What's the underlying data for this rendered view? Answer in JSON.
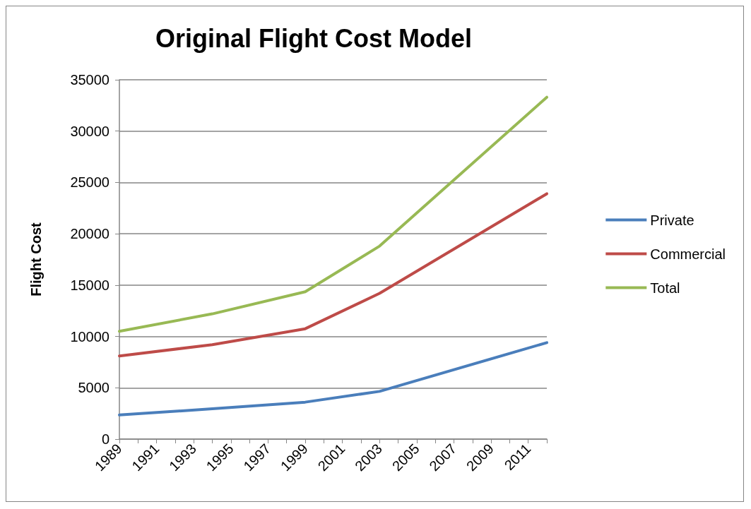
{
  "chart_data": {
    "type": "line",
    "title": "Original Flight Cost Model",
    "ylabel": "Flight Cost",
    "categories": [
      "1989",
      null,
      "1991",
      null,
      "1993",
      null,
      "1995",
      null,
      "1997",
      null,
      "1999",
      null,
      "2001",
      null,
      "2003",
      null,
      "2005",
      null,
      "2007",
      null,
      "2009",
      null,
      "2011",
      null
    ],
    "series": [
      {
        "name": "Private",
        "color": "#4a7ebb",
        "values": [
          2350,
          null,
          null,
          null,
          null,
          2950,
          null,
          null,
          null,
          null,
          3600,
          null,
          null,
          null,
          4650,
          null,
          null,
          null,
          null,
          null,
          null,
          null,
          null,
          9400
        ]
      },
      {
        "name": "Commercial",
        "color": "#be4b48",
        "values": [
          8100,
          null,
          null,
          null,
          null,
          9200,
          null,
          null,
          null,
          null,
          10750,
          null,
          null,
          null,
          14200,
          null,
          null,
          null,
          null,
          null,
          null,
          null,
          null,
          23900
        ]
      },
      {
        "name": "Total",
        "color": "#98b954",
        "values": [
          10500,
          null,
          null,
          null,
          null,
          12200,
          null,
          null,
          null,
          null,
          14350,
          null,
          null,
          null,
          18800,
          null,
          null,
          null,
          null,
          null,
          null,
          null,
          null,
          33300
        ]
      }
    ],
    "ylim": [
      0,
      35000
    ],
    "yticks": [
      0,
      5000,
      10000,
      15000,
      20000,
      25000,
      30000,
      35000
    ],
    "grid": "y",
    "legend": "right",
    "marker": "none",
    "line_style": "solid"
  }
}
